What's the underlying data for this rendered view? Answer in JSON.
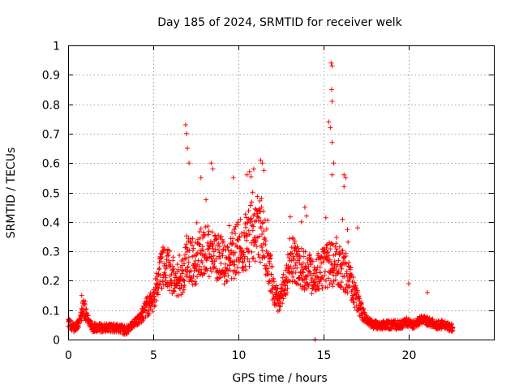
{
  "chart_data": {
    "type": "scatter",
    "title": "Day 185 of 2024, SRMTID for receiver welk",
    "xlabel": "GPS time / hours",
    "ylabel": "SRMTID / TECUs",
    "xlim": [
      0,
      25
    ],
    "ylim": [
      0,
      1
    ],
    "xticks": [
      0,
      5,
      10,
      15,
      20
    ],
    "yticks": [
      0,
      0.1,
      0.2,
      0.3,
      0.4,
      0.5,
      0.6,
      0.7,
      0.8,
      0.9,
      1
    ],
    "ytick_labels": [
      "0",
      "0.1",
      "0.2",
      "0.3",
      "0.4",
      "0.5",
      "0.6",
      "0.7",
      "0.8",
      "0.9",
      "1"
    ],
    "grid": true,
    "marker": "plus",
    "marker_color": "#ff0000",
    "series_envelope": [
      [
        0.0,
        0.06
      ],
      [
        0.3,
        0.04
      ],
      [
        0.6,
        0.05
      ],
      [
        0.9,
        0.11
      ],
      [
        1.1,
        0.08
      ],
      [
        1.4,
        0.04
      ],
      [
        2.0,
        0.04
      ],
      [
        2.5,
        0.04
      ],
      [
        3.0,
        0.04
      ],
      [
        3.4,
        0.03
      ],
      [
        3.8,
        0.05
      ],
      [
        4.2,
        0.07
      ],
      [
        4.6,
        0.11
      ],
      [
        5.0,
        0.13
      ],
      [
        5.3,
        0.22
      ],
      [
        5.6,
        0.26
      ],
      [
        6.0,
        0.23
      ],
      [
        6.4,
        0.2
      ],
      [
        6.8,
        0.22
      ],
      [
        7.0,
        0.28
      ],
      [
        7.4,
        0.26
      ],
      [
        7.8,
        0.29
      ],
      [
        8.2,
        0.3
      ],
      [
        8.6,
        0.28
      ],
      [
        9.0,
        0.27
      ],
      [
        9.4,
        0.25
      ],
      [
        9.8,
        0.3
      ],
      [
        10.2,
        0.32
      ],
      [
        10.6,
        0.35
      ],
      [
        11.0,
        0.38
      ],
      [
        11.4,
        0.37
      ],
      [
        11.8,
        0.25
      ],
      [
        12.1,
        0.16
      ],
      [
        12.4,
        0.13
      ],
      [
        12.8,
        0.2
      ],
      [
        13.2,
        0.27
      ],
      [
        13.6,
        0.25
      ],
      [
        14.0,
        0.23
      ],
      [
        14.4,
        0.22
      ],
      [
        14.8,
        0.24
      ],
      [
        15.2,
        0.25
      ],
      [
        15.6,
        0.26
      ],
      [
        16.0,
        0.24
      ],
      [
        16.4,
        0.22
      ],
      [
        16.8,
        0.16
      ],
      [
        17.2,
        0.1
      ],
      [
        17.6,
        0.06
      ],
      [
        18.0,
        0.05
      ],
      [
        18.5,
        0.05
      ],
      [
        19.0,
        0.05
      ],
      [
        19.5,
        0.05
      ],
      [
        19.9,
        0.06
      ],
      [
        20.3,
        0.05
      ],
      [
        20.8,
        0.07
      ],
      [
        21.2,
        0.06
      ],
      [
        21.6,
        0.05
      ],
      [
        22.0,
        0.05
      ],
      [
        22.6,
        0.04
      ]
    ],
    "spikes": [
      [
        0.8,
        0.15
      ],
      [
        1.0,
        0.13
      ],
      [
        6.9,
        0.73
      ],
      [
        6.95,
        0.7
      ],
      [
        7.0,
        0.65
      ],
      [
        7.1,
        0.6
      ],
      [
        7.8,
        0.55
      ],
      [
        8.4,
        0.6
      ],
      [
        8.5,
        0.58
      ],
      [
        9.7,
        0.55
      ],
      [
        10.5,
        0.56
      ],
      [
        10.9,
        0.58
      ],
      [
        11.3,
        0.61
      ],
      [
        11.4,
        0.6
      ],
      [
        13.7,
        0.4
      ],
      [
        13.9,
        0.45
      ],
      [
        14.0,
        0.42
      ],
      [
        15.3,
        0.74
      ],
      [
        15.4,
        0.72
      ],
      [
        15.45,
        0.94
      ],
      [
        15.5,
        0.93
      ],
      [
        15.47,
        0.85
      ],
      [
        15.5,
        0.81
      ],
      [
        15.5,
        0.67
      ],
      [
        15.6,
        0.6
      ],
      [
        15.5,
        0.56
      ],
      [
        16.2,
        0.56
      ],
      [
        16.3,
        0.55
      ],
      [
        16.2,
        0.52
      ],
      [
        17.0,
        0.38
      ],
      [
        20.0,
        0.19
      ],
      [
        21.1,
        0.16
      ],
      [
        14.5,
        0.0
      ]
    ],
    "noise_amplitude": 0.09,
    "point_spacing_hours": 0.012
  }
}
